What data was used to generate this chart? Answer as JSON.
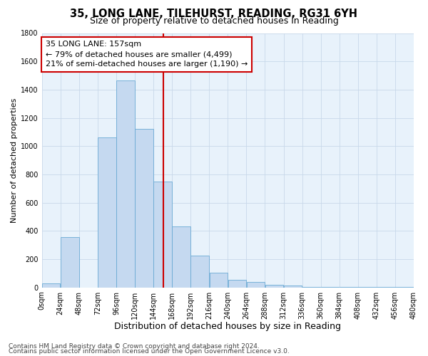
{
  "title": "35, LONG LANE, TILEHURST, READING, RG31 6YH",
  "subtitle": "Size of property relative to detached houses in Reading",
  "xlabel": "Distribution of detached houses by size in Reading",
  "ylabel": "Number of detached properties",
  "bin_labels": [
    "0sqm",
    "24sqm",
    "48sqm",
    "72sqm",
    "96sqm",
    "120sqm",
    "144sqm",
    "168sqm",
    "192sqm",
    "216sqm",
    "240sqm",
    "264sqm",
    "288sqm",
    "312sqm",
    "336sqm",
    "360sqm",
    "384sqm",
    "408sqm",
    "432sqm",
    "456sqm",
    "480sqm"
  ],
  "bar_heights": [
    30,
    355,
    0,
    1060,
    1465,
    1120,
    750,
    430,
    225,
    105,
    55,
    40,
    20,
    15,
    5,
    5,
    3,
    2,
    2,
    2
  ],
  "bar_color": "#c5d9f0",
  "bar_edge_color": "#6aaad4",
  "property_line_x": 157,
  "property_line_color": "#cc0000",
  "annotation_line1": "35 LONG LANE: 157sqm",
  "annotation_line2": "← 79% of detached houses are smaller (4,499)",
  "annotation_line3": "21% of semi-detached houses are larger (1,190) →",
  "annotation_box_color": "#cc0000",
  "ylim": [
    0,
    1800
  ],
  "yticks": [
    0,
    200,
    400,
    600,
    800,
    1000,
    1200,
    1400,
    1600,
    1800
  ],
  "grid_color": "#c8d8ea",
  "background_color": "#e8f2fb",
  "footnote1": "Contains HM Land Registry data © Crown copyright and database right 2024.",
  "footnote2": "Contains public sector information licensed under the Open Government Licence v3.0.",
  "title_fontsize": 10.5,
  "subtitle_fontsize": 9,
  "xlabel_fontsize": 9,
  "ylabel_fontsize": 8,
  "tick_fontsize": 7,
  "annotation_fontsize": 8,
  "footnote_fontsize": 6.5
}
